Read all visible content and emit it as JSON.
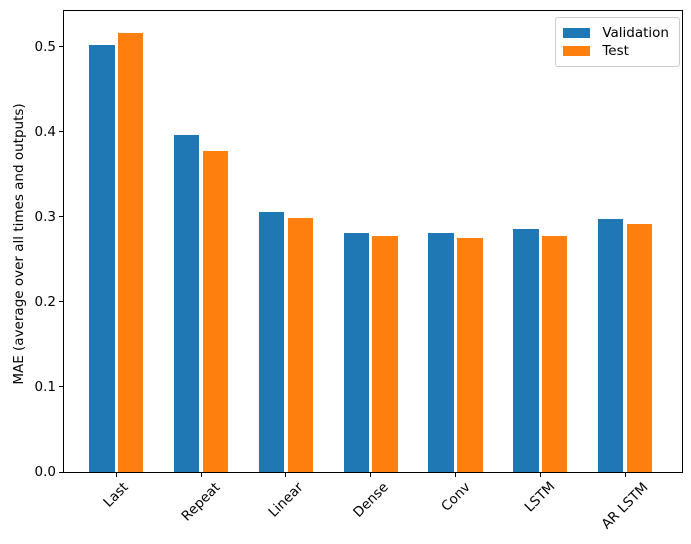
{
  "chart_data": {
    "type": "bar",
    "title": "",
    "xlabel": "",
    "ylabel": "MAE (average over all times and outputs)",
    "categories": [
      "Last",
      "Repeat",
      "Linear",
      "Dense",
      "Conv",
      "LSTM",
      "AR LSTM"
    ],
    "series": [
      {
        "name": "Validation",
        "color": "#1f77b4",
        "values": [
          0.502,
          0.396,
          0.306,
          0.281,
          0.281,
          0.286,
          0.298
        ]
      },
      {
        "name": "Test",
        "color": "#ff7f0e",
        "values": [
          0.516,
          0.377,
          0.299,
          0.277,
          0.275,
          0.277,
          0.292
        ]
      }
    ],
    "ylim": [
      0,
      0.542
    ],
    "yticks": [
      "0.0",
      "0.1",
      "0.2",
      "0.3",
      "0.4",
      "0.5"
    ],
    "xtick_rotation_deg": 45,
    "bar_width": 0.3,
    "group_offsets": [
      -0.17,
      0.17
    ],
    "grid": false,
    "legend": {
      "position": "upper right",
      "entries": [
        "Validation",
        "Test"
      ]
    }
  }
}
